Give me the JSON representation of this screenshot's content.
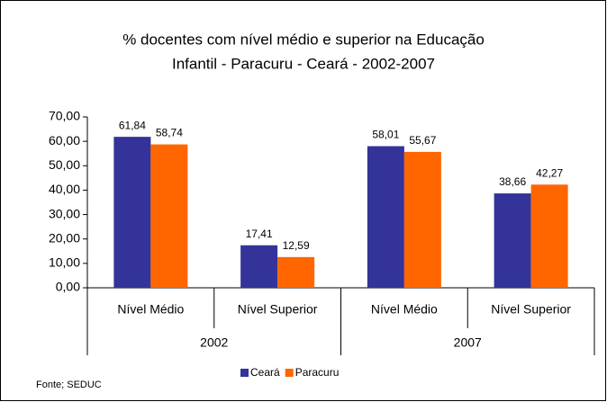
{
  "chart_data": {
    "type": "bar",
    "title": [
      "% docentes com nível médio e superior na  Educação",
      "Infantil - Paracuru - Ceará - 2002-2007"
    ],
    "categories": [
      "Nível Médio",
      "Nível Superior",
      "Nível Médio",
      "Nível Superior"
    ],
    "category_groups": [
      "2002",
      "2007"
    ],
    "series": [
      {
        "name": "Ceará",
        "color": "#333399",
        "values": [
          61.84,
          17.41,
          58.01,
          38.66
        ],
        "value_labels": [
          "61,84",
          "17,41",
          "58,01",
          "38,66"
        ]
      },
      {
        "name": "Paracuru",
        "color": "#ff6600",
        "values": [
          58.74,
          12.59,
          55.67,
          42.27
        ],
        "value_labels": [
          "58,74",
          "12,59",
          "55,67",
          "42,27"
        ]
      }
    ],
    "ylim": [
      0,
      70
    ],
    "yticks": [
      {
        "value": 0,
        "label": "0,00"
      },
      {
        "value": 10,
        "label": "10,00"
      },
      {
        "value": 20,
        "label": "20,00"
      },
      {
        "value": 30,
        "label": "30,00"
      },
      {
        "value": 40,
        "label": "40,00"
      },
      {
        "value": 50,
        "label": "50,00"
      },
      {
        "value": 60,
        "label": "60,00"
      },
      {
        "value": 70,
        "label": "70,00"
      }
    ],
    "grid": false,
    "legend": "bottom",
    "source": "Fonte; SEDUC"
  }
}
